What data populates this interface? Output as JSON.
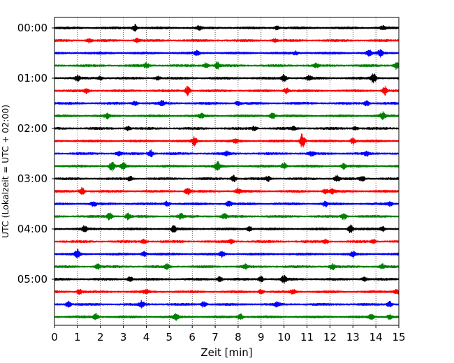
{
  "chart_data": {
    "type": "line",
    "xlabel": "Zeit  [min]",
    "ylabel": "UTC (Lokalzeit = UTC + 02:00)",
    "xlim": [
      0,
      15
    ],
    "x_ticks": [
      "0",
      "1",
      "2",
      "3",
      "4",
      "5",
      "6",
      "7",
      "8",
      "9",
      "10",
      "11",
      "12",
      "13",
      "14",
      "15"
    ],
    "y_ticks": [
      "00:00",
      "01:00",
      "02:00",
      "03:00",
      "04:00",
      "05:00"
    ],
    "grid": "vertical-dotted",
    "rows_per_hour": 4,
    "row_count": 24,
    "colors": [
      "#000000",
      "#ff0000",
      "#0000ff",
      "#008000"
    ],
    "traces": [
      {
        "label": "00:00",
        "events": [
          [
            3.5,
            2.2
          ],
          [
            6.3,
            1.3
          ],
          [
            9.7,
            1.2
          ],
          [
            14.3,
            1.0
          ]
        ]
      },
      {
        "label": "00:15",
        "events": [
          [
            1.5,
            1.4
          ],
          [
            3.6,
            1.2
          ],
          [
            9.6,
            1.1
          ]
        ]
      },
      {
        "label": "00:30",
        "events": [
          [
            6.2,
            1.2
          ],
          [
            10.5,
            1.0
          ],
          [
            13.7,
            2.0
          ],
          [
            14.2,
            2.2
          ]
        ]
      },
      {
        "label": "00:45",
        "events": [
          [
            4.0,
            1.5
          ],
          [
            6.6,
            2.0
          ],
          [
            7.1,
            2.0
          ],
          [
            11.4,
            1.2
          ],
          [
            14.9,
            2.3
          ]
        ]
      },
      {
        "label": "01:00",
        "events": [
          [
            1.0,
            1.5
          ],
          [
            2.0,
            1.1
          ],
          [
            4.5,
            1.2
          ],
          [
            10.0,
            2.2
          ],
          [
            11.1,
            1.5
          ],
          [
            13.9,
            3.0
          ]
        ]
      },
      {
        "label": "01:15",
        "events": [
          [
            1.4,
            1.5
          ],
          [
            5.8,
            2.8
          ],
          [
            10.1,
            1.7
          ],
          [
            14.4,
            2.5
          ]
        ]
      },
      {
        "label": "01:30",
        "events": [
          [
            3.5,
            1.3
          ],
          [
            4.7,
            1.5
          ],
          [
            8.0,
            1.2
          ],
          [
            13.6,
            1.6
          ]
        ]
      },
      {
        "label": "01:45",
        "events": [
          [
            2.3,
            1.4
          ],
          [
            6.4,
            1.3
          ],
          [
            9.5,
            2.0
          ],
          [
            14.3,
            2.1
          ]
        ]
      },
      {
        "label": "02:00",
        "events": [
          [
            3.2,
            1.2
          ],
          [
            8.7,
            1.3
          ],
          [
            10.4,
            1.0
          ],
          [
            13.1,
            1.0
          ]
        ]
      },
      {
        "label": "02:15",
        "events": [
          [
            6.1,
            2.6
          ],
          [
            7.9,
            1.3
          ],
          [
            10.8,
            4.8
          ],
          [
            13.0,
            1.8
          ]
        ]
      },
      {
        "label": "02:30",
        "events": [
          [
            2.8,
            1.3
          ],
          [
            4.2,
            2.1
          ],
          [
            7.5,
            1.2
          ],
          [
            11.2,
            1.5
          ],
          [
            13.6,
            1.3
          ]
        ]
      },
      {
        "label": "02:45",
        "events": [
          [
            2.5,
            2.8
          ],
          [
            3.0,
            2.2
          ],
          [
            7.1,
            2.6
          ],
          [
            10.0,
            2.0
          ],
          [
            12.6,
            1.7
          ]
        ]
      },
      {
        "label": "03:00",
        "events": [
          [
            3.3,
            1.4
          ],
          [
            7.8,
            2.0
          ],
          [
            9.3,
            1.6
          ],
          [
            12.3,
            2.0
          ],
          [
            13.4,
            1.7
          ]
        ]
      },
      {
        "label": "03:15",
        "events": [
          [
            1.2,
            2.3
          ],
          [
            5.8,
            2.2
          ],
          [
            8.0,
            1.6
          ],
          [
            11.8,
            1.5
          ],
          [
            12.1,
            1.7
          ]
        ]
      },
      {
        "label": "03:30",
        "events": [
          [
            1.7,
            1.4
          ],
          [
            4.9,
            1.6
          ],
          [
            7.6,
            1.7
          ],
          [
            11.8,
            1.5
          ],
          [
            14.6,
            1.3
          ]
        ]
      },
      {
        "label": "03:45",
        "events": [
          [
            2.4,
            2.2
          ],
          [
            3.2,
            1.8
          ],
          [
            5.5,
            1.5
          ],
          [
            7.4,
            1.5
          ],
          [
            12.6,
            2.1
          ]
        ]
      },
      {
        "label": "04:00",
        "events": [
          [
            1.3,
            1.6
          ],
          [
            5.2,
            2.0
          ],
          [
            8.5,
            1.4
          ],
          [
            12.9,
            2.6
          ],
          [
            14.3,
            1.5
          ]
        ]
      },
      {
        "label": "04:15",
        "events": [
          [
            3.9,
            1.3
          ],
          [
            7.7,
            1.3
          ],
          [
            11.8,
            1.2
          ],
          [
            13.9,
            1.0
          ]
        ]
      },
      {
        "label": "04:30",
        "events": [
          [
            1.0,
            2.6
          ],
          [
            3.9,
            1.5
          ],
          [
            7.3,
            1.7
          ],
          [
            13.0,
            1.5
          ]
        ]
      },
      {
        "label": "04:45",
        "events": [
          [
            1.9,
            1.6
          ],
          [
            4.9,
            1.7
          ],
          [
            8.3,
            1.4
          ],
          [
            12.1,
            1.9
          ],
          [
            14.3,
            1.3
          ]
        ]
      },
      {
        "label": "05:00",
        "events": [
          [
            3.3,
            1.6
          ],
          [
            7.2,
            1.5
          ],
          [
            9.0,
            1.6
          ],
          [
            10.0,
            2.6
          ],
          [
            13.5,
            1.5
          ]
        ]
      },
      {
        "label": "05:15",
        "events": [
          [
            1.1,
            1.6
          ],
          [
            4.0,
            1.4
          ],
          [
            9.0,
            1.3
          ],
          [
            10.4,
            1.6
          ],
          [
            14.9,
            1.6
          ]
        ]
      },
      {
        "label": "05:30",
        "events": [
          [
            0.6,
            1.9
          ],
          [
            3.8,
            2.0
          ],
          [
            6.5,
            1.7
          ],
          [
            9.7,
            1.5
          ],
          [
            14.6,
            1.7
          ]
        ]
      },
      {
        "label": "05:45",
        "events": [
          [
            1.8,
            2.0
          ],
          [
            5.3,
            1.7
          ],
          [
            8.1,
            1.7
          ],
          [
            13.8,
            1.6
          ],
          [
            14.6,
            1.7
          ]
        ]
      }
    ]
  }
}
